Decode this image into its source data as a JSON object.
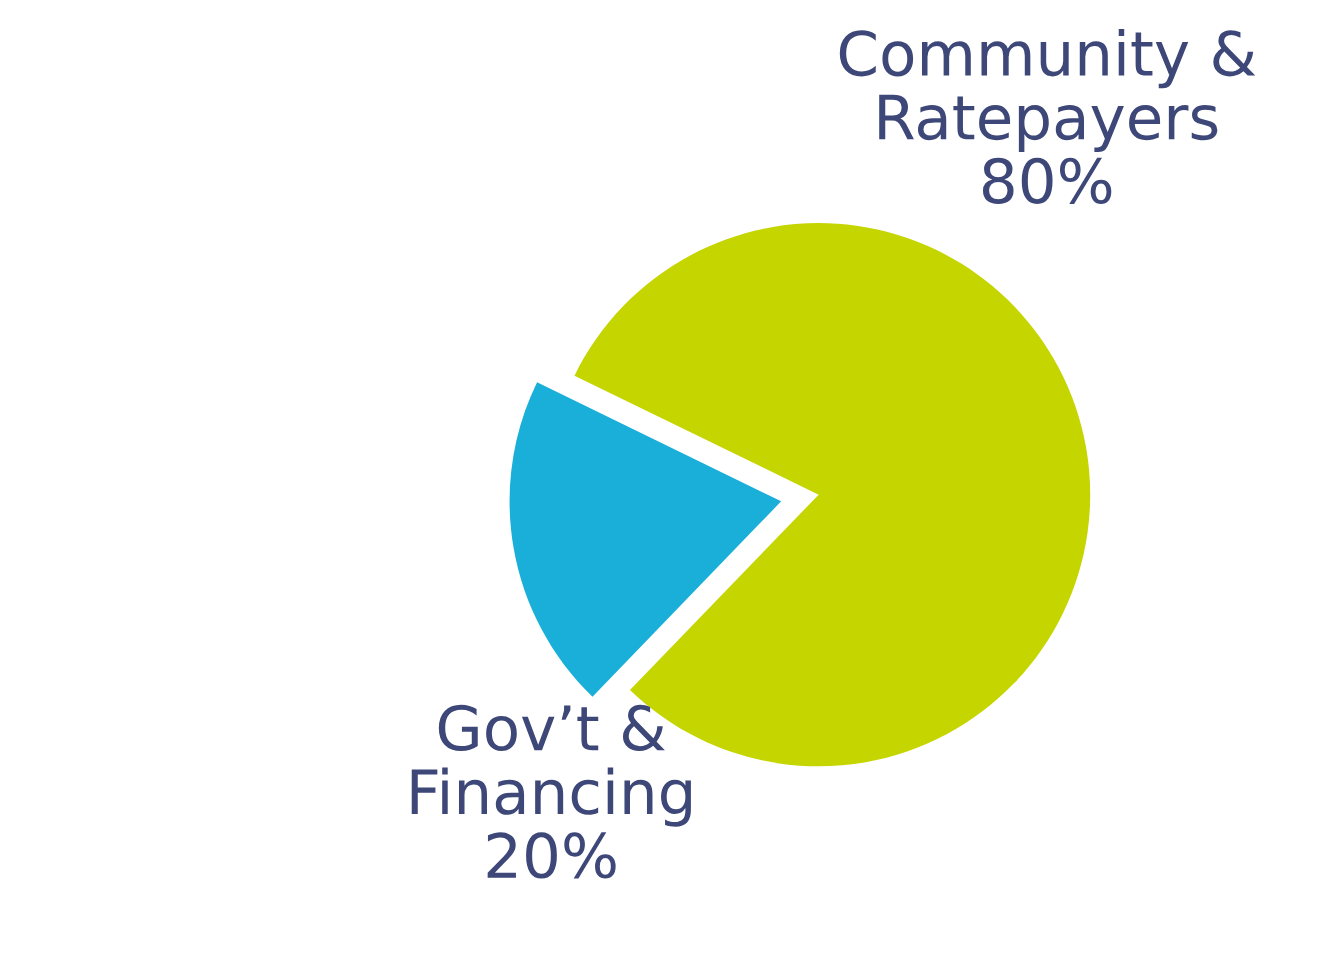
{
  "chart_data": {
    "type": "pie",
    "categories": [
      "Community & Ratepayers",
      "Gov’t & Financing"
    ],
    "values": [
      80,
      20
    ],
    "colors": [
      "#c5d500",
      "#1aafd9"
    ],
    "value_labels": [
      "80%",
      "20%"
    ],
    "legend": false
  }
}
